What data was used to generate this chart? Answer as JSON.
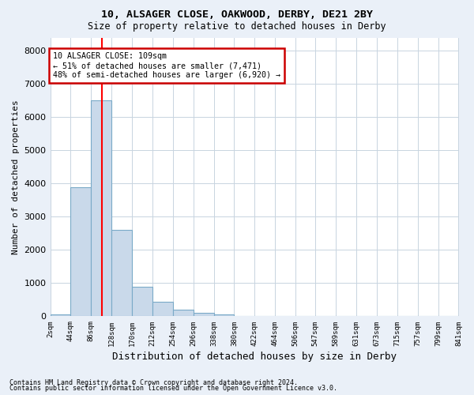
{
  "title1": "10, ALSAGER CLOSE, OAKWOOD, DERBY, DE21 2BY",
  "title2": "Size of property relative to detached houses in Derby",
  "xlabel": "Distribution of detached houses by size in Derby",
  "ylabel": "Number of detached properties",
  "footnote1": "Contains HM Land Registry data © Crown copyright and database right 2024.",
  "footnote2": "Contains public sector information licensed under the Open Government Licence v3.0.",
  "bin_edges": [
    2,
    44,
    86,
    128,
    170,
    212,
    254,
    296,
    338,
    380,
    422,
    464,
    506,
    547,
    589,
    631,
    673,
    715,
    757,
    799,
    841
  ],
  "bar_heights": [
    50,
    3900,
    6500,
    2600,
    900,
    450,
    200,
    100,
    50,
    5,
    5,
    0,
    0,
    0,
    0,
    0,
    0,
    0,
    0,
    0
  ],
  "bar_color": "#c9d9ea",
  "bar_edge_color": "#7aaac8",
  "grid_color": "#c8d4e0",
  "plot_bg_color": "#ffffff",
  "fig_bg_color": "#eaf0f8",
  "red_line_x": 109,
  "annotation_text": "10 ALSAGER CLOSE: 109sqm\n← 51% of detached houses are smaller (7,471)\n48% of semi-detached houses are larger (6,920) →",
  "annotation_box_color": "#ffffff",
  "annotation_border_color": "#cc0000",
  "ylim": [
    0,
    8400
  ],
  "yticks": [
    0,
    1000,
    2000,
    3000,
    4000,
    5000,
    6000,
    7000,
    8000
  ],
  "tick_labels": [
    "2sqm",
    "44sqm",
    "86sqm",
    "128sqm",
    "170sqm",
    "212sqm",
    "254sqm",
    "296sqm",
    "338sqm",
    "380sqm",
    "422sqm",
    "464sqm",
    "506sqm",
    "547sqm",
    "589sqm",
    "631sqm",
    "673sqm",
    "715sqm",
    "757sqm",
    "799sqm",
    "841sqm"
  ]
}
